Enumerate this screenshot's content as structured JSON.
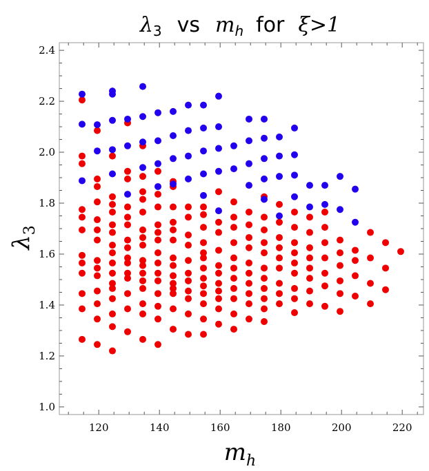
{
  "chart_data": {
    "type": "scatter",
    "title": "λ3 vs mh for ξ>1",
    "title_parts": {
      "lambda": "λ",
      "lambda_sub": "3",
      "vs": "vs",
      "m": "m",
      "m_sub": "h",
      "for": "for",
      "condition": "ξ>1"
    },
    "xlabel": "m_h",
    "xlabel_parts": {
      "main": "m",
      "sub": "h"
    },
    "ylabel": "λ_3",
    "ylabel_parts": {
      "main": "λ",
      "sub": "3"
    },
    "xlim": [
      107,
      227
    ],
    "ylim": [
      0.97,
      2.43
    ],
    "xticks": [
      120,
      140,
      160,
      180,
      200,
      220
    ],
    "yticks": [
      1.0,
      1.2,
      1.4,
      1.6,
      1.8,
      2.0,
      2.2,
      2.4
    ],
    "grid": false,
    "colors": {
      "red": "#ee0000",
      "blue": "#2200ee"
    },
    "series": [
      {
        "name": "red",
        "color": "#ee0000",
        "points": [
          [
            114.5,
            2.205
          ],
          [
            114.5,
            1.985
          ],
          [
            114.5,
            1.955
          ],
          [
            114.5,
            1.775
          ],
          [
            114.5,
            1.745
          ],
          [
            114.5,
            1.695
          ],
          [
            114.5,
            1.595
          ],
          [
            114.5,
            1.565
          ],
          [
            114.5,
            1.525
          ],
          [
            114.5,
            1.445
          ],
          [
            114.5,
            1.385
          ],
          [
            114.5,
            1.265
          ],
          [
            119.5,
            2.085
          ],
          [
            119.5,
            1.895
          ],
          [
            119.5,
            1.865
          ],
          [
            119.5,
            1.805
          ],
          [
            119.5,
            1.735
          ],
          [
            119.5,
            1.695
          ],
          [
            119.5,
            1.655
          ],
          [
            119.5,
            1.575
          ],
          [
            119.5,
            1.545
          ],
          [
            119.5,
            1.515
          ],
          [
            119.5,
            1.455
          ],
          [
            119.5,
            1.405
          ],
          [
            119.5,
            1.345
          ],
          [
            119.5,
            1.245
          ],
          [
            124.5,
            1.985
          ],
          [
            124.5,
            1.825
          ],
          [
            124.5,
            1.795
          ],
          [
            124.5,
            1.765
          ],
          [
            124.5,
            1.715
          ],
          [
            124.5,
            1.685
          ],
          [
            124.5,
            1.635
          ],
          [
            124.5,
            1.605
          ],
          [
            124.5,
            1.565
          ],
          [
            124.5,
            1.525
          ],
          [
            124.5,
            1.485
          ],
          [
            124.5,
            1.465
          ],
          [
            124.5,
            1.425
          ],
          [
            124.5,
            1.365
          ],
          [
            124.5,
            1.315
          ],
          [
            124.5,
            1.22
          ],
          [
            129.5,
            2.115
          ],
          [
            129.5,
            1.925
          ],
          [
            129.5,
            1.895
          ],
          [
            129.5,
            1.785
          ],
          [
            129.5,
            1.745
          ],
          [
            129.5,
            1.715
          ],
          [
            129.5,
            1.655
          ],
          [
            129.5,
            1.625
          ],
          [
            129.5,
            1.585
          ],
          [
            129.5,
            1.565
          ],
          [
            129.5,
            1.525
          ],
          [
            129.5,
            1.505
          ],
          [
            129.5,
            1.445
          ],
          [
            129.5,
            1.385
          ],
          [
            129.5,
            1.295
          ],
          [
            134.5,
            2.025
          ],
          [
            134.5,
            1.905
          ],
          [
            134.5,
            1.845
          ],
          [
            134.5,
            1.815
          ],
          [
            134.5,
            1.765
          ],
          [
            134.5,
            1.695
          ],
          [
            134.5,
            1.665
          ],
          [
            134.5,
            1.635
          ],
          [
            134.5,
            1.575
          ],
          [
            134.5,
            1.555
          ],
          [
            134.5,
            1.525
          ],
          [
            134.5,
            1.495
          ],
          [
            134.5,
            1.465
          ],
          [
            134.5,
            1.405
          ],
          [
            134.5,
            1.365
          ],
          [
            134.5,
            1.265
          ],
          [
            139.5,
            1.925
          ],
          [
            139.5,
            1.835
          ],
          [
            139.5,
            1.785
          ],
          [
            139.5,
            1.715
          ],
          [
            139.5,
            1.685
          ],
          [
            139.5,
            1.655
          ],
          [
            139.5,
            1.605
          ],
          [
            139.5,
            1.565
          ],
          [
            139.5,
            1.525
          ],
          [
            139.5,
            1.495
          ],
          [
            139.5,
            1.445
          ],
          [
            139.5,
            1.395
          ],
          [
            139.5,
            1.345
          ],
          [
            139.5,
            1.245
          ],
          [
            144.5,
            1.885
          ],
          [
            144.5,
            1.865
          ],
          [
            144.5,
            1.785
          ],
          [
            144.5,
            1.725
          ],
          [
            144.5,
            1.695
          ],
          [
            144.5,
            1.655
          ],
          [
            144.5,
            1.585
          ],
          [
            144.5,
            1.555
          ],
          [
            144.5,
            1.515
          ],
          [
            144.5,
            1.485
          ],
          [
            144.5,
            1.465
          ],
          [
            144.5,
            1.445
          ],
          [
            144.5,
            1.385
          ],
          [
            144.5,
            1.305
          ],
          [
            149.5,
            1.785
          ],
          [
            149.5,
            1.745
          ],
          [
            149.5,
            1.675
          ],
          [
            149.5,
            1.635
          ],
          [
            149.5,
            1.575
          ],
          [
            149.5,
            1.525
          ],
          [
            149.5,
            1.495
          ],
          [
            149.5,
            1.455
          ],
          [
            149.5,
            1.425
          ],
          [
            149.5,
            1.365
          ],
          [
            149.5,
            1.285
          ],
          [
            154.5,
            1.785
          ],
          [
            154.5,
            1.755
          ],
          [
            154.5,
            1.705
          ],
          [
            154.5,
            1.645
          ],
          [
            154.5,
            1.605
          ],
          [
            154.5,
            1.585
          ],
          [
            154.5,
            1.545
          ],
          [
            154.5,
            1.505
          ],
          [
            154.5,
            1.475
          ],
          [
            154.5,
            1.445
          ],
          [
            154.5,
            1.405
          ],
          [
            154.5,
            1.345
          ],
          [
            154.5,
            1.285
          ],
          [
            159.5,
            1.845
          ],
          [
            159.5,
            1.725
          ],
          [
            159.5,
            1.685
          ],
          [
            159.5,
            1.615
          ],
          [
            159.5,
            1.555
          ],
          [
            159.5,
            1.525
          ],
          [
            159.5,
            1.485
          ],
          [
            159.5,
            1.455
          ],
          [
            159.5,
            1.425
          ],
          [
            159.5,
            1.385
          ],
          [
            159.5,
            1.325
          ],
          [
            164.5,
            1.805
          ],
          [
            164.5,
            1.745
          ],
          [
            164.5,
            1.705
          ],
          [
            164.5,
            1.645
          ],
          [
            164.5,
            1.585
          ],
          [
            164.5,
            1.545
          ],
          [
            164.5,
            1.505
          ],
          [
            164.5,
            1.465
          ],
          [
            164.5,
            1.425
          ],
          [
            164.5,
            1.365
          ],
          [
            164.5,
            1.305
          ],
          [
            169.5,
            1.765
          ],
          [
            169.5,
            1.715
          ],
          [
            169.5,
            1.665
          ],
          [
            169.5,
            1.625
          ],
          [
            169.5,
            1.565
          ],
          [
            169.5,
            1.525
          ],
          [
            169.5,
            1.485
          ],
          [
            169.5,
            1.445
          ],
          [
            169.5,
            1.405
          ],
          [
            169.5,
            1.345
          ],
          [
            174.5,
            1.825
          ],
          [
            174.5,
            1.745
          ],
          [
            174.5,
            1.695
          ],
          [
            174.5,
            1.645
          ],
          [
            174.5,
            1.605
          ],
          [
            174.5,
            1.545
          ],
          [
            174.5,
            1.505
          ],
          [
            174.5,
            1.465
          ],
          [
            174.5,
            1.425
          ],
          [
            174.5,
            1.385
          ],
          [
            174.5,
            1.335
          ],
          [
            179.5,
            1.795
          ],
          [
            179.5,
            1.725
          ],
          [
            179.5,
            1.665
          ],
          [
            179.5,
            1.625
          ],
          [
            179.5,
            1.585
          ],
          [
            179.5,
            1.545
          ],
          [
            179.5,
            1.485
          ],
          [
            179.5,
            1.445
          ],
          [
            179.5,
            1.405
          ],
          [
            184.5,
            1.765
          ],
          [
            184.5,
            1.705
          ],
          [
            184.5,
            1.645
          ],
          [
            184.5,
            1.605
          ],
          [
            184.5,
            1.565
          ],
          [
            184.5,
            1.525
          ],
          [
            184.5,
            1.465
          ],
          [
            184.5,
            1.425
          ],
          [
            184.5,
            1.37
          ],
          [
            189.5,
            1.745
          ],
          [
            189.5,
            1.685
          ],
          [
            189.5,
            1.625
          ],
          [
            189.5,
            1.585
          ],
          [
            189.5,
            1.545
          ],
          [
            189.5,
            1.505
          ],
          [
            189.5,
            1.455
          ],
          [
            189.5,
            1.405
          ],
          [
            194.5,
            1.765
          ],
          [
            194.5,
            1.705
          ],
          [
            194.5,
            1.645
          ],
          [
            194.5,
            1.585
          ],
          [
            194.5,
            1.525
          ],
          [
            194.5,
            1.475
          ],
          [
            194.5,
            1.395
          ],
          [
            199.5,
            1.655
          ],
          [
            199.5,
            1.605
          ],
          [
            199.5,
            1.555
          ],
          [
            199.5,
            1.495
          ],
          [
            199.5,
            1.445
          ],
          [
            199.5,
            1.375
          ],
          [
            204.5,
            1.615
          ],
          [
            204.5,
            1.575
          ],
          [
            204.5,
            1.515
          ],
          [
            204.5,
            1.435
          ],
          [
            209.5,
            1.685
          ],
          [
            209.5,
            1.585
          ],
          [
            209.5,
            1.485
          ],
          [
            209.5,
            1.405
          ],
          [
            214.5,
            1.645
          ],
          [
            214.5,
            1.545
          ],
          [
            214.5,
            1.46
          ],
          [
            219.5,
            1.61
          ]
        ]
      },
      {
        "name": "blue",
        "color": "#2200ee",
        "points": [
          [
            114.5,
            2.228
          ],
          [
            114.5,
            2.11
          ],
          [
            114.5,
            1.888
          ],
          [
            119.5,
            2.108
          ],
          [
            119.5,
            2.005
          ],
          [
            124.5,
            2.24
          ],
          [
            124.5,
            2.228
          ],
          [
            124.5,
            2.125
          ],
          [
            124.5,
            2.01
          ],
          [
            124.5,
            1.915
          ],
          [
            129.5,
            2.13
          ],
          [
            129.5,
            2.025
          ],
          [
            129.5,
            1.835
          ],
          [
            134.5,
            2.258
          ],
          [
            134.5,
            2.14
          ],
          [
            134.5,
            2.04
          ],
          [
            134.5,
            1.94
          ],
          [
            139.5,
            2.155
          ],
          [
            139.5,
            2.045
          ],
          [
            139.5,
            1.955
          ],
          [
            139.5,
            1.865
          ],
          [
            144.5,
            2.16
          ],
          [
            144.5,
            2.065
          ],
          [
            144.5,
            1.975
          ],
          [
            144.5,
            1.875
          ],
          [
            149.5,
            2.185
          ],
          [
            149.5,
            2.085
          ],
          [
            149.5,
            1.985
          ],
          [
            149.5,
            1.895
          ],
          [
            154.5,
            2.185
          ],
          [
            154.5,
            2.095
          ],
          [
            154.5,
            2.005
          ],
          [
            154.5,
            1.915
          ],
          [
            154.5,
            1.83
          ],
          [
            159.5,
            2.22
          ],
          [
            159.5,
            2.1
          ],
          [
            159.5,
            2.015
          ],
          [
            159.5,
            1.925
          ],
          [
            159.5,
            1.77
          ],
          [
            164.5,
            2.025
          ],
          [
            164.5,
            1.935
          ],
          [
            169.5,
            2.13
          ],
          [
            169.5,
            2.045
          ],
          [
            169.5,
            1.955
          ],
          [
            169.5,
            1.87
          ],
          [
            174.5,
            2.13
          ],
          [
            174.5,
            2.055
          ],
          [
            174.5,
            1.975
          ],
          [
            174.5,
            1.895
          ],
          [
            174.5,
            1.815
          ],
          [
            179.5,
            2.06
          ],
          [
            179.5,
            1.985
          ],
          [
            179.5,
            1.905
          ],
          [
            179.5,
            1.75
          ],
          [
            184.5,
            2.095
          ],
          [
            184.5,
            1.99
          ],
          [
            184.5,
            1.91
          ],
          [
            184.5,
            1.825
          ],
          [
            189.5,
            1.87
          ],
          [
            189.5,
            1.785
          ],
          [
            194.5,
            1.87
          ],
          [
            194.5,
            1.795
          ],
          [
            199.5,
            1.905
          ],
          [
            199.5,
            1.775
          ],
          [
            204.5,
            1.855
          ],
          [
            204.5,
            1.725
          ]
        ]
      }
    ]
  }
}
